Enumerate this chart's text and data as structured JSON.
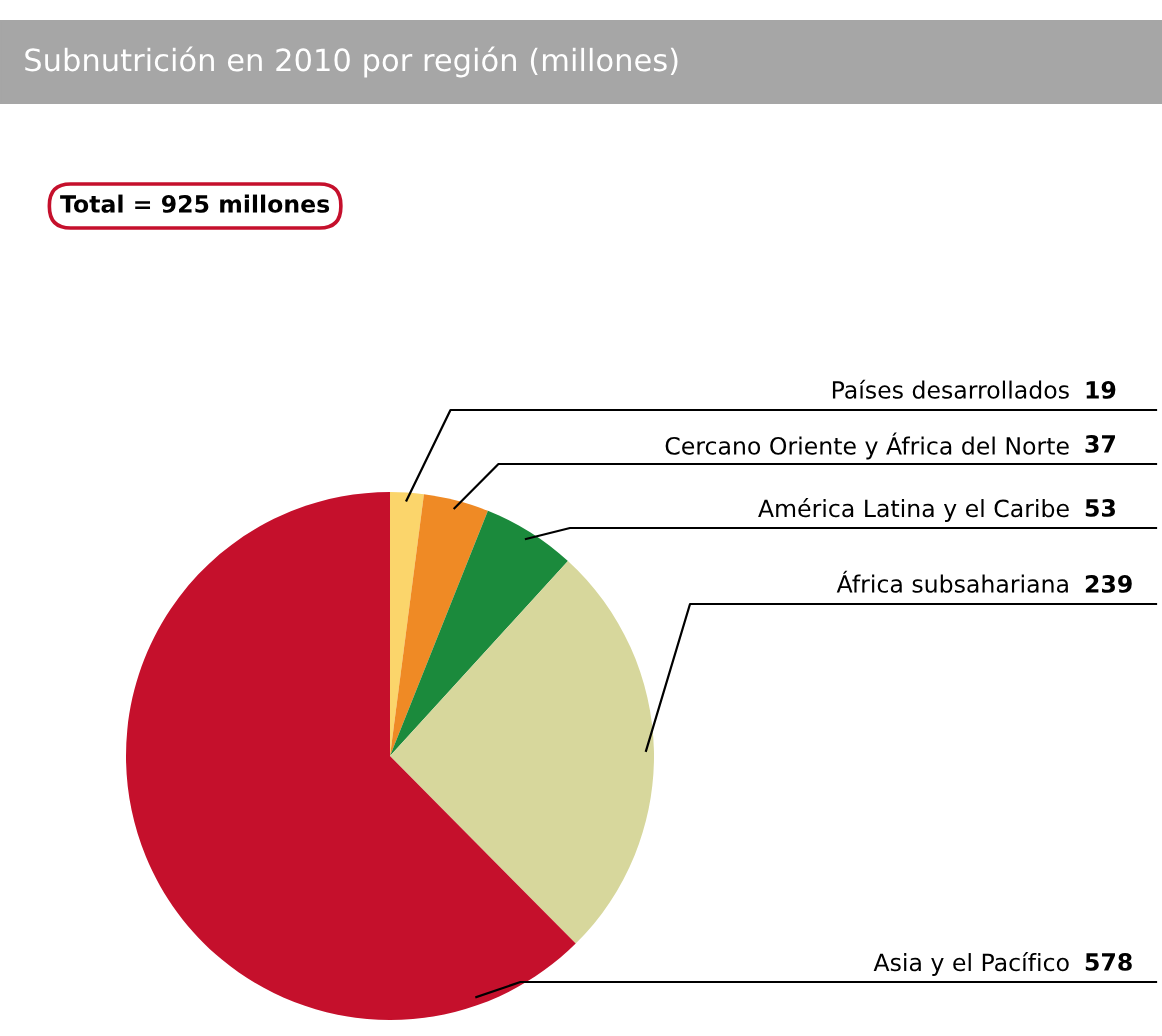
{
  "chart_data": {
    "type": "pie",
    "title": "Subnutrición en 2010 por región (millones)",
    "annotations": [
      "Total = 925 millones"
    ],
    "categories": [
      "Países desarrollados",
      "Cercano Oriente y África del Norte",
      "América Latina y el Caribe",
      "África subsahariana",
      "Asia y el Pacífico"
    ],
    "values": [
      19,
      37,
      53,
      239,
      578
    ],
    "colors": [
      "#fbd56b",
      "#ef8a25",
      "#1b8a3c",
      "#d7d79c",
      "#c5102c"
    ],
    "data_labels": true,
    "legend": false
  }
}
